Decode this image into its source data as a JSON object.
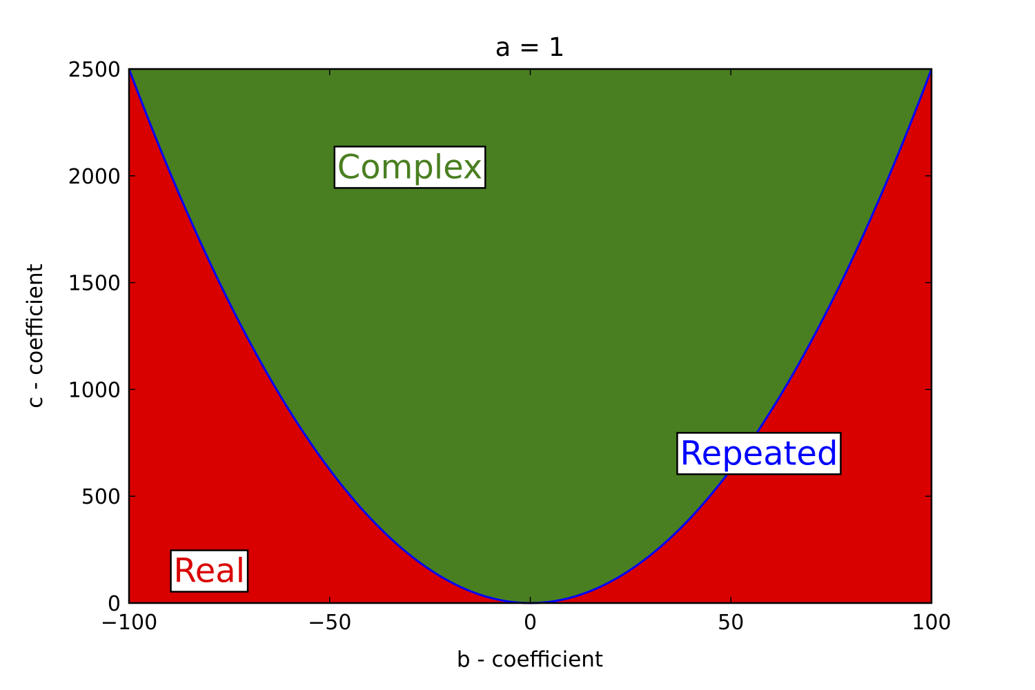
{
  "chart_data": {
    "type": "area",
    "title": "a = 1",
    "xlabel": "b - coefficient",
    "ylabel": "c - coefficient",
    "xlim": [
      -100,
      100
    ],
    "ylim": [
      0,
      2500
    ],
    "x_ticks": [
      -100,
      -50,
      0,
      50,
      100
    ],
    "x_tick_labels": [
      "−100",
      "−50",
      "0",
      "50",
      "100"
    ],
    "y_ticks": [
      0,
      500,
      1000,
      1500,
      2000,
      2500
    ],
    "y_tick_labels": [
      "0",
      "500",
      "1000",
      "1500",
      "2000",
      "2500"
    ],
    "grid": false,
    "a": 1,
    "boundary": "c = b^2 / (4a)",
    "boundary_points": {
      "b": [
        -100,
        -80,
        -60,
        -40,
        -20,
        0,
        20,
        40,
        60,
        80,
        100
      ],
      "c": [
        2500,
        1600,
        900,
        400,
        100,
        0,
        100,
        400,
        900,
        1600,
        2500
      ]
    },
    "regions": [
      {
        "name": "Complex",
        "color": "#4a7f21",
        "where": "c > b^2/4"
      },
      {
        "name": "Real",
        "color": "#d90000",
        "where": "c < b^2/4"
      }
    ],
    "boundary_color": "#0000ff",
    "annotations": [
      {
        "text": "Complex",
        "color": "#4a7f21",
        "x": -30,
        "y": 2040
      },
      {
        "text": "Repeated",
        "color": "#0000ff",
        "x": 57,
        "y": 700
      },
      {
        "text": "Real",
        "color": "#d90000",
        "x": -80,
        "y": 150
      }
    ]
  }
}
